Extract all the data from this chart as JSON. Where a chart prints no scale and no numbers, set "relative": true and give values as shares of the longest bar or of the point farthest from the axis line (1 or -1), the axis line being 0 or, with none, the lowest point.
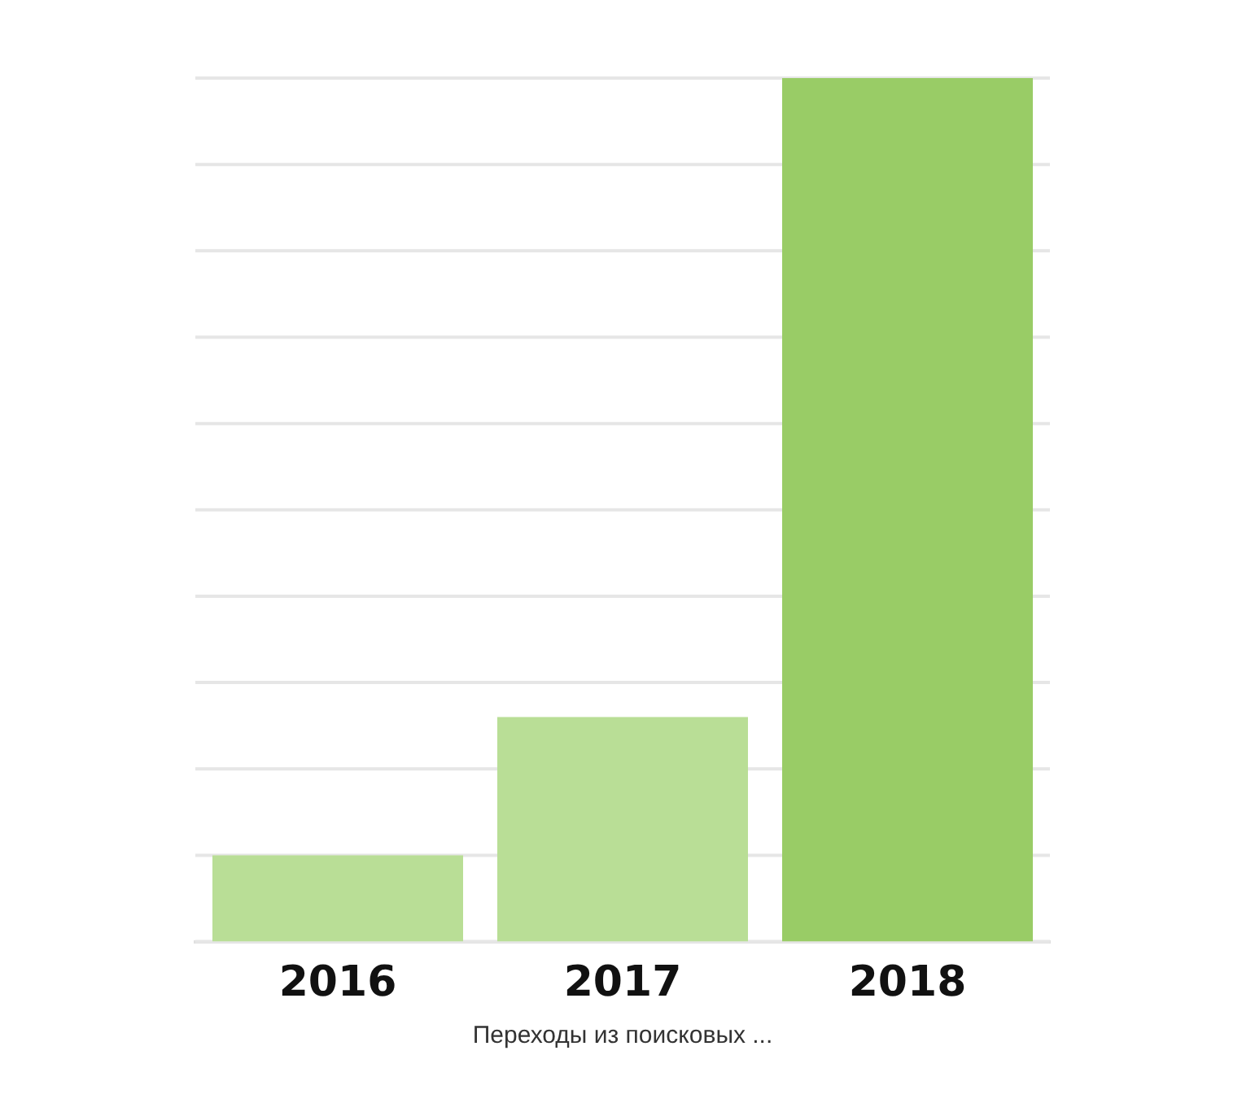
{
  "chart_data": {
    "type": "bar",
    "relative": true,
    "xlabel": "Переходы из поисковых ...",
    "categories": [
      "2016",
      "2017",
      "2018"
    ],
    "values": [
      0.1,
      0.26,
      1
    ],
    "colors": [
      "#b9de96",
      "#b9de96",
      "#99cc66"
    ],
    "grid": "y",
    "legend": false
  }
}
